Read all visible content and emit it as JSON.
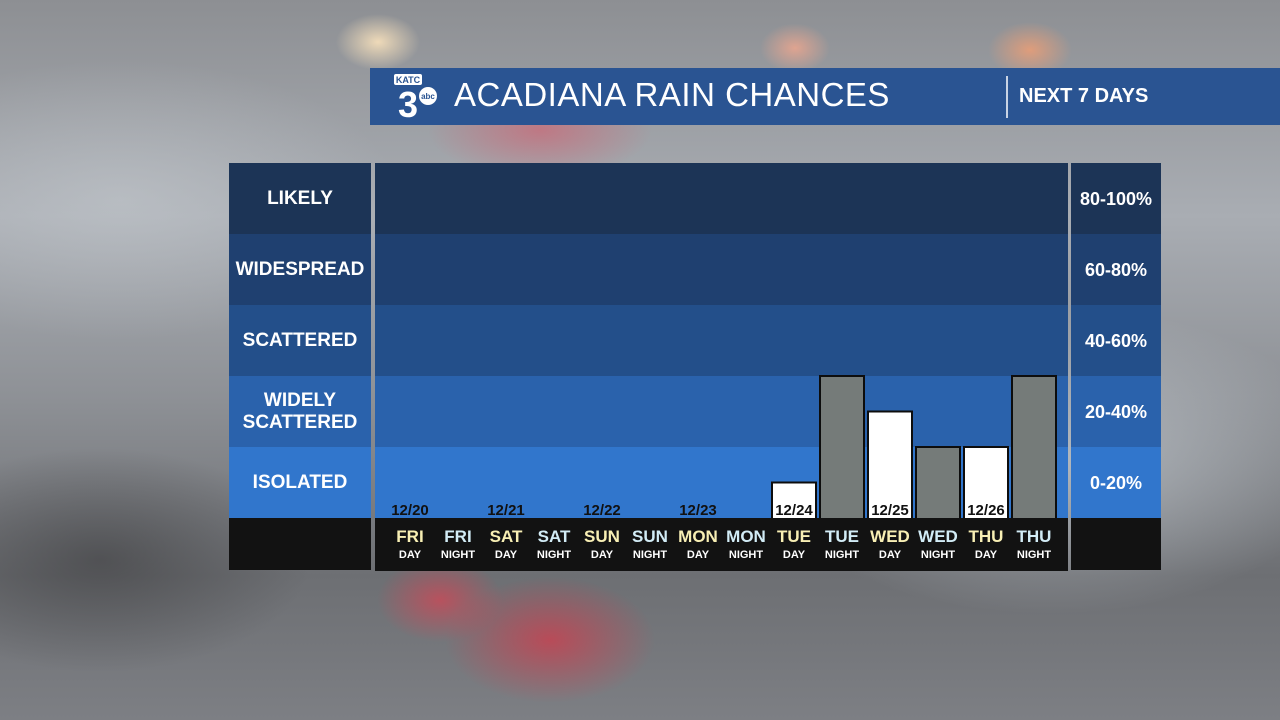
{
  "header": {
    "logo_text": "KATC",
    "logo_number": "3",
    "logo_network": "abc",
    "title": "ACADIANA RAIN CHANCES",
    "subtitle": "NEXT 7 DAYS"
  },
  "categories_left": [
    "LIKELY",
    "WIDESPREAD",
    "SCATTERED",
    "WIDELY SCATTERED",
    "ISOLATED"
  ],
  "ranges_right": [
    "80-100%",
    "60-80%",
    "40-60%",
    "20-40%",
    "0-20%"
  ],
  "colors": {
    "header": "#2a5492",
    "band_likely": "#1c3456",
    "band_widespread": "#1f4070",
    "band_scattered": "#234f8a",
    "band_widely_scattered": "#2a62ac",
    "band_isolated": "#3176cc",
    "bar_day": "#ffffff",
    "bar_night": "#757b79",
    "day_label": "#f8efb4",
    "night_label": "#d2ecf6"
  },
  "chart_data": {
    "type": "bar",
    "title": "ACADIANA RAIN CHANCES",
    "subtitle": "NEXT 7 DAYS",
    "ylim": [
      0,
      100
    ],
    "categories": [
      {
        "day": "FRI",
        "part": "DAY",
        "date": "12/20"
      },
      {
        "day": "FRI",
        "part": "NIGHT",
        "date": ""
      },
      {
        "day": "SAT",
        "part": "DAY",
        "date": "12/21"
      },
      {
        "day": "SAT",
        "part": "NIGHT",
        "date": ""
      },
      {
        "day": "SUN",
        "part": "DAY",
        "date": "12/22"
      },
      {
        "day": "SUN",
        "part": "NIGHT",
        "date": ""
      },
      {
        "day": "MON",
        "part": "DAY",
        "date": "12/23"
      },
      {
        "day": "MON",
        "part": "NIGHT",
        "date": ""
      },
      {
        "day": "TUE",
        "part": "DAY",
        "date": "12/24"
      },
      {
        "day": "TUE",
        "part": "NIGHT",
        "date": ""
      },
      {
        "day": "WED",
        "part": "DAY",
        "date": "12/25"
      },
      {
        "day": "WED",
        "part": "NIGHT",
        "date": ""
      },
      {
        "day": "THU",
        "part": "DAY",
        "date": "12/26"
      },
      {
        "day": "THU",
        "part": "NIGHT",
        "date": ""
      }
    ],
    "values": [
      0,
      0,
      0,
      0,
      0,
      0,
      0,
      0,
      10,
      40,
      30,
      20,
      20,
      40
    ]
  }
}
